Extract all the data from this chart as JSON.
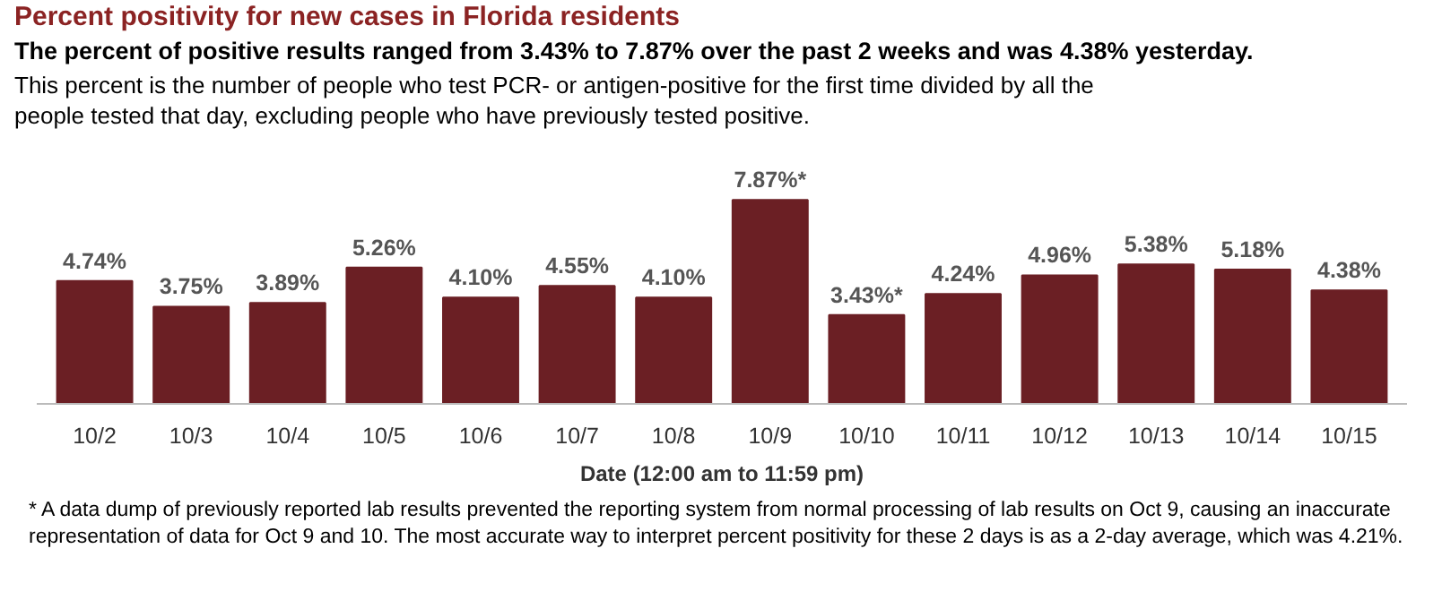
{
  "chart_data": {
    "type": "bar",
    "title": "Percent positivity for new cases in Florida residents",
    "subtitle": "The percent of positive results ranged from 3.43% to 7.87% over the past 2 weeks and was 4.38% yesterday.",
    "xlabel": "Date (12:00 am to 11:59 pm)",
    "categories": [
      "10/2",
      "10/3",
      "10/4",
      "10/5",
      "10/6",
      "10/7",
      "10/8",
      "10/9",
      "10/10",
      "10/11",
      "10/12",
      "10/13",
      "10/14",
      "10/15"
    ],
    "values": [
      4.74,
      3.75,
      3.89,
      5.26,
      4.1,
      4.55,
      4.1,
      7.87,
      3.43,
      4.24,
      4.96,
      5.38,
      5.18,
      4.38
    ],
    "value_labels": [
      "4.74%",
      "3.75%",
      "3.89%",
      "5.26%",
      "4.10%",
      "4.55%",
      "4.10%",
      "7.87%*",
      "3.43%*",
      "4.24%",
      "4.96%",
      "5.38%",
      "5.18%",
      "4.38%"
    ],
    "color": "#6b1f24",
    "grid": false,
    "annotations": [
      "This percent is the number of people who test PCR- or antigen-positive for the first time divided by all the people tested that day, excluding people who have previously tested positive.",
      "* A data dump of previously reported lab results prevented the reporting system from normal processing of lab results on Oct 9, causing an inaccurate representation of data for Oct 9 and 10. The most accurate way to interpret percent positivity for these 2 days is as a 2-day average, which was 4.21%."
    ]
  }
}
